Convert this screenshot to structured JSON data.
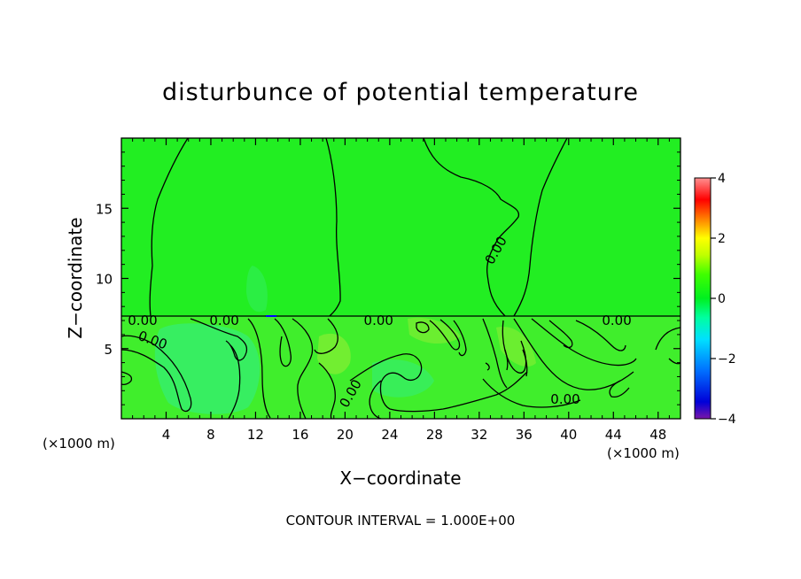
{
  "chart_data": {
    "type": "heatmap",
    "title": "disturbunce of potential temperature",
    "xlabel": "X−coordinate",
    "ylabel": "Z−coordinate",
    "x_unit_left": "(×1000 m)",
    "x_unit_right": "(×1000 m)",
    "footer": "CONTOUR INTERVAL = 1.000E+00",
    "xlim": [
      0,
      50
    ],
    "ylim": [
      0,
      20
    ],
    "x_ticks": [
      4,
      8,
      12,
      16,
      20,
      24,
      28,
      32,
      36,
      40,
      44,
      48
    ],
    "y_ticks": [
      5,
      10,
      15
    ],
    "colorbar": {
      "min": -4,
      "max": 4,
      "ticks": [
        4,
        2,
        0,
        -2,
        -4
      ],
      "colors": [
        "#7a16a8",
        "#0000d8",
        "#0070ff",
        "#00e0ff",
        "#00ffa0",
        "#00f020",
        "#40ff00",
        "#c0ff00",
        "#ffff00",
        "#ff8000",
        "#ff0000",
        "#ff9090"
      ]
    },
    "contour_labels": [
      {
        "text": "0.00",
        "x": 1.9,
        "z": 7.0
      },
      {
        "text": "0.00",
        "x": 9.2,
        "z": 7.0
      },
      {
        "text": "0.00",
        "x": 23.0,
        "z": 7.0
      },
      {
        "text": "0.00",
        "x": 44.3,
        "z": 7.0
      },
      {
        "text": "0.00",
        "x": 2.8,
        "z": 5.6
      },
      {
        "text": "0.00",
        "x": 33.5,
        "z": 12.0
      },
      {
        "text": "0.00",
        "x": 20.5,
        "z": 1.8
      },
      {
        "text": "0.00",
        "x": 39.7,
        "z": 1.4
      }
    ]
  }
}
